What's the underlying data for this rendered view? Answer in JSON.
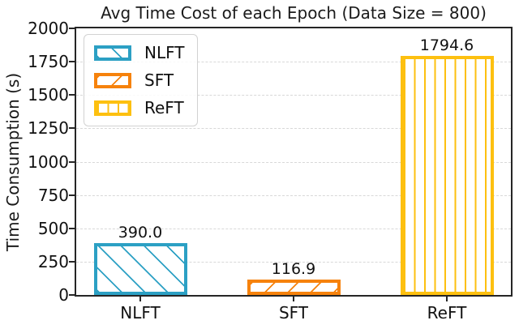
{
  "chart_data": {
    "type": "bar",
    "title": "Avg Time Cost of each Epoch (Data Size = 800)",
    "ylabel": "Time Consumption (s)",
    "xlabel": "",
    "categories": [
      "NLFT",
      "SFT",
      "ReFT"
    ],
    "values": [
      390.0,
      116.9,
      1794.6
    ],
    "value_labels": [
      "390.0",
      "116.9",
      "1794.6"
    ],
    "bar_colors": [
      "#2CA0C4",
      "#F6820C",
      "#FDC010"
    ],
    "hatches": [
      "/",
      "\\",
      "|"
    ],
    "ylim": [
      0,
      2000
    ],
    "yticks": [
      0,
      250,
      500,
      750,
      1000,
      1250,
      1500,
      1750,
      2000
    ],
    "grid": "horizontal-dashed",
    "legend": {
      "position": "upper-left",
      "entries": [
        "NLFT",
        "SFT",
        "ReFT"
      ]
    }
  }
}
